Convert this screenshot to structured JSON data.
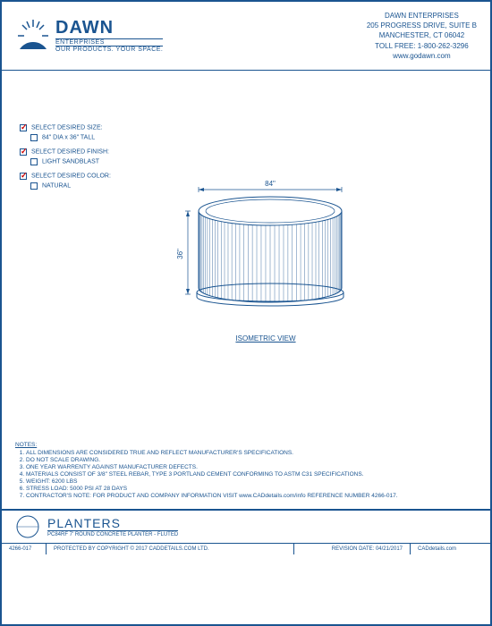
{
  "header": {
    "logo_name": "DAWN",
    "logo_sub1": "ENTERPRISES",
    "logo_sub2": "OUR PRODUCTS. YOUR SPACE.",
    "company_name": "DAWN ENTERPRISES",
    "address1": "205 PROGRESS DRIVE, SUITE B",
    "address2": "MANCHESTER, CT 06042",
    "toll_free": "TOLL FREE: 1-800-262-3296",
    "website": "www.godawn.com"
  },
  "options": {
    "size_label": "SELECT DESIRED SIZE:",
    "size_option": "84\" DIA x 36\" TALL",
    "finish_label": "SELECT DESIRED FINISH:",
    "finish_option": "LIGHT SANDBLAST",
    "color_label": "SELECT DESIRED COLOR:",
    "color_option": "NATURAL"
  },
  "drawing": {
    "width_dim": "84\"",
    "height_dim": "36\"",
    "view_label": "ISOMETRIC VIEW",
    "planter_color": "#1a5490",
    "dim_color": "#1a5490"
  },
  "notes": {
    "title": "NOTES:",
    "items": [
      "ALL DIMENSIONS ARE CONSIDERED TRUE AND REFLECT MANUFACTURER'S SPECIFICATIONS.",
      "DO NOT SCALE DRAWING.",
      "ONE YEAR WARRENTY AGAINST MANUFACTURER DEFECTS.",
      "MATERIALS CONSIST OF 3/8\" STEEL REBAR, TYPE 3 PORTLAND CEMENT CONFORMING TO ASTM C31 SPECIFICATIONS.",
      "WEIGHT: 6200 LBS",
      "STRESS LOAD: 5000 PSI AT 28 DAYS",
      "CONTRACTOR'S NOTE: FOR PRODUCT AND COMPANY INFORMATION VISIT www.CADdetails.com/info REFERENCE NUMBER 4266-017."
    ]
  },
  "title_block": {
    "main": "PLANTERS",
    "sub": "PC84RF 7' ROUND CONCRETE PLANTER - FLUTED"
  },
  "footer": {
    "ref": "4266-017",
    "copyright": "PROTECTED BY COPYRIGHT © 2017 CADDETAILS.COM LTD.",
    "revision": "REVISION DATE: 04/21/2017",
    "cad": "CADdetails.com"
  },
  "colors": {
    "primary": "#1a5490",
    "accent": "#c00000"
  }
}
